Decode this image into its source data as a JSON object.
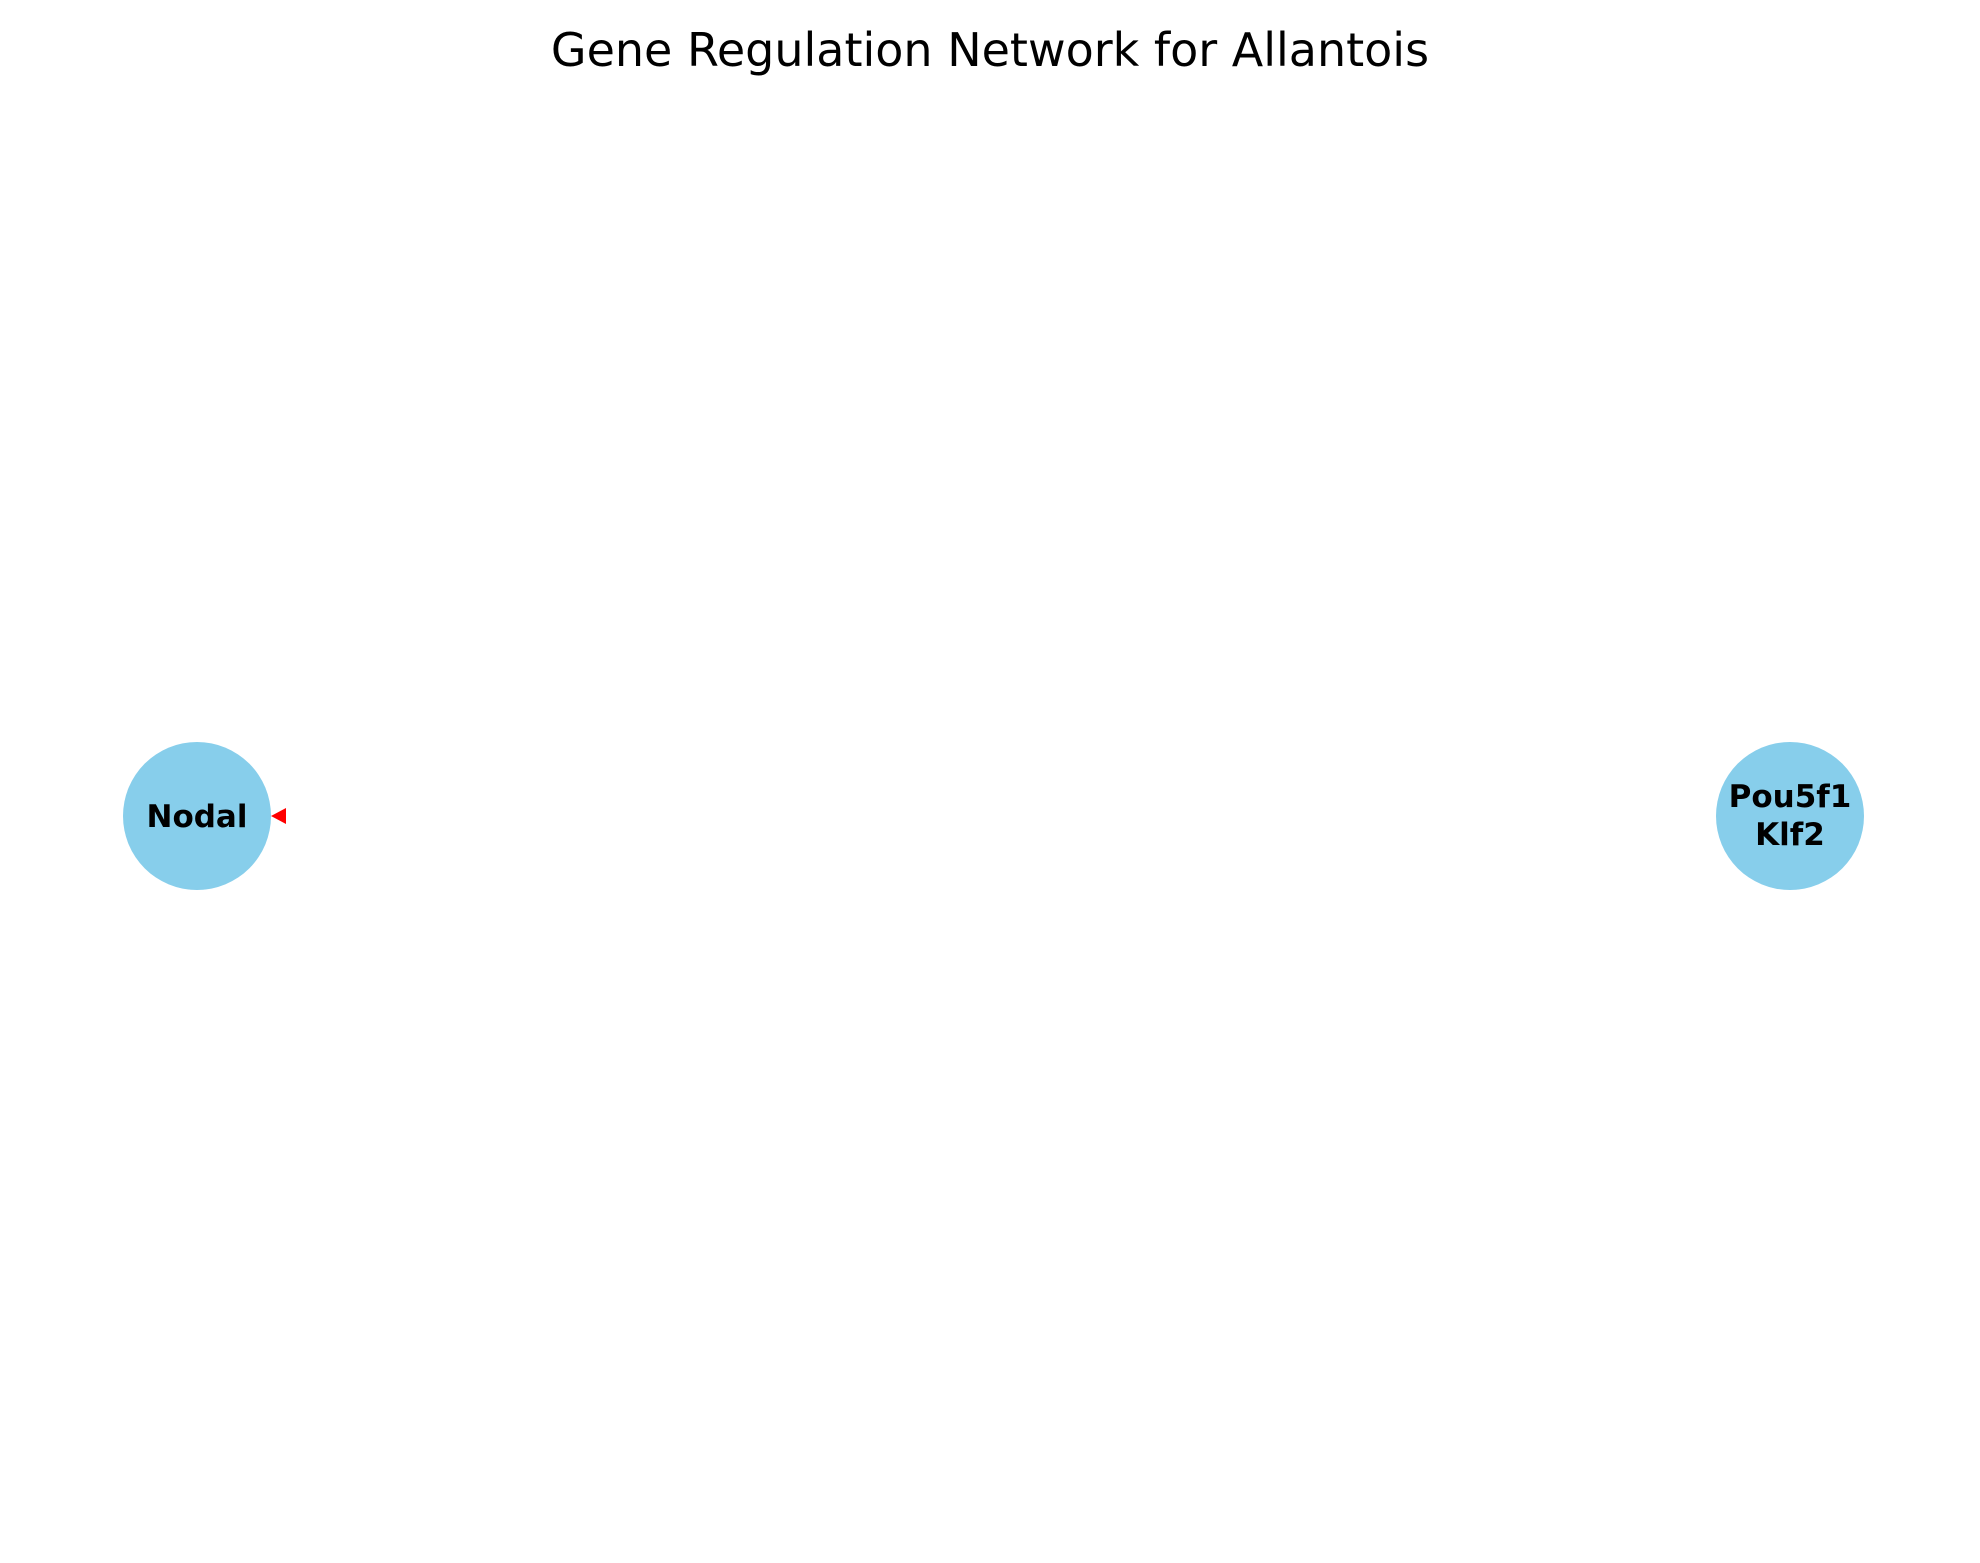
{
  "diagram": {
    "title": "Gene Regulation Network for Allantois",
    "node_color": "#87ceeb",
    "edge_color": "#ff0000",
    "nodes": [
      {
        "id": "n1",
        "label_lines": [
          "Nodal"
        ]
      },
      {
        "id": "n2",
        "label_lines": [
          "Pou5f1",
          "Klf2"
        ]
      }
    ],
    "edges": [
      {
        "from": "n2",
        "to": "n1"
      }
    ]
  }
}
